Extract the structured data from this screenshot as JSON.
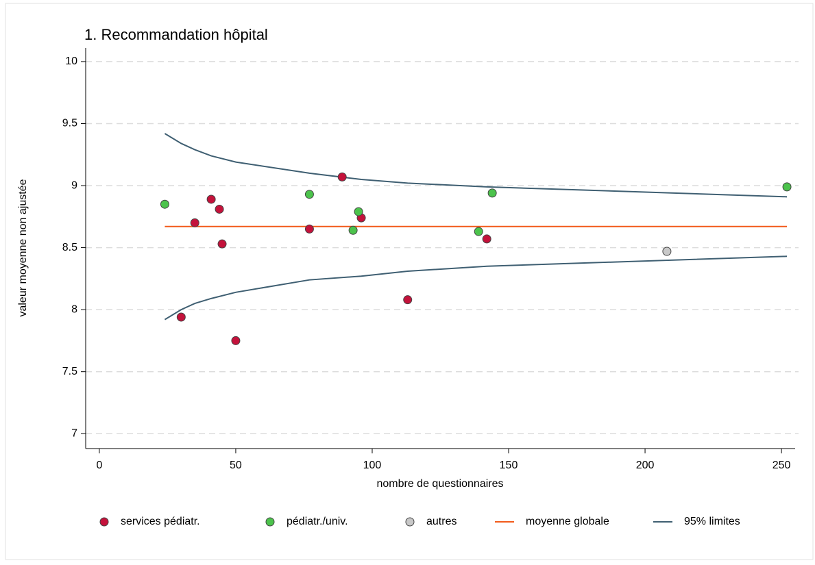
{
  "chart_data": {
    "type": "scatter",
    "title": "1. Recommandation hôpital",
    "x_label": "nombre de questionnaires",
    "y_label": "valeur moyenne non ajustée",
    "xlim": [
      -5,
      255
    ],
    "ylim": [
      6.88,
      10.11
    ],
    "xticks": [
      0,
      50,
      100,
      150,
      200,
      250
    ],
    "yticks": [
      7,
      7.5,
      8,
      8.5,
      9,
      9.5,
      10
    ],
    "grid": true,
    "series": [
      {
        "name": "services pédiatr.",
        "type": "scatter",
        "color": "#c4123b",
        "x": [
          30,
          35,
          41,
          44,
          45,
          50,
          77,
          89,
          96,
          113,
          142
        ],
        "values": [
          7.94,
          8.7,
          8.89,
          8.81,
          8.53,
          7.75,
          8.65,
          9.07,
          8.74,
          8.08,
          8.57
        ]
      },
      {
        "name": "pédiatr./univ.",
        "type": "scatter",
        "color": "#4cc34c",
        "x": [
          24,
          77,
          93,
          95,
          139,
          144,
          252
        ],
        "values": [
          8.85,
          8.93,
          8.64,
          8.79,
          8.63,
          8.94,
          8.99
        ]
      },
      {
        "name": "autres",
        "type": "scatter",
        "color": "#c8c8c8",
        "x": [
          208
        ],
        "values": [
          8.47
        ]
      },
      {
        "name": "moyenne globale",
        "type": "line",
        "color": "#f25a1a",
        "x": [
          24,
          252
        ],
        "values": [
          8.67,
          8.67
        ]
      },
      {
        "name": "95% limites",
        "type": "line",
        "color": "#3f5f72",
        "x": [
          24,
          30,
          35,
          41,
          50,
          77,
          96,
          113,
          142,
          252,
          null,
          24,
          30,
          35,
          41,
          50,
          77,
          96,
          113,
          142,
          252
        ],
        "values": [
          9.42,
          9.34,
          9.29,
          9.24,
          9.19,
          9.1,
          9.05,
          9.02,
          8.99,
          8.91,
          null,
          7.92,
          8.0,
          8.05,
          8.09,
          8.14,
          8.24,
          8.27,
          8.31,
          8.35,
          8.43
        ]
      }
    ]
  }
}
